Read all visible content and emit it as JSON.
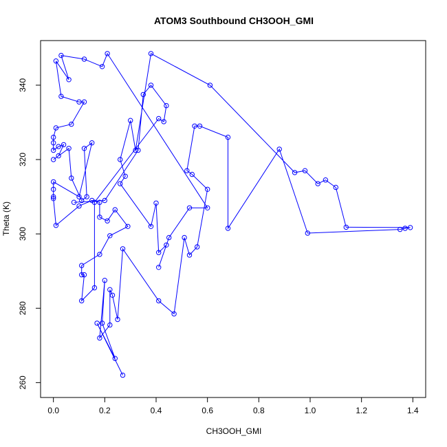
{
  "chart_data": {
    "type": "line",
    "title": "ATOM3 Southbound CH3OOH_GMI",
    "xlabel": "CH3OOH_GMI",
    "ylabel": "Theta (K)",
    "xlim": [
      -0.05,
      1.45
    ],
    "ylim": [
      256,
      352
    ],
    "xticks": [
      0.0,
      0.2,
      0.4,
      0.6,
      0.8,
      1.0,
      1.2,
      1.4
    ],
    "xtick_labels": [
      "0.0",
      "0.2",
      "0.4",
      "0.6",
      "0.8",
      "1.0",
      "1.2",
      "1.4"
    ],
    "yticks": [
      260,
      280,
      300,
      320,
      340
    ],
    "ytick_labels": [
      "260",
      "280",
      "300",
      "320",
      "340"
    ],
    "grid": false,
    "legend": "none",
    "series": [
      {
        "color": "#0000ff",
        "marker": "open-circle",
        "points": [
          [
            0.27,
            262
          ],
          [
            0.17,
            276
          ],
          [
            0.24,
            266.5
          ],
          [
            0.19,
            276
          ],
          [
            0.2,
            287.5
          ],
          [
            0.18,
            272
          ],
          [
            0.22,
            275.5
          ],
          [
            0.22,
            285
          ],
          [
            0.23,
            283.5
          ],
          [
            0.25,
            277
          ],
          [
            0.27,
            296
          ],
          [
            0.41,
            282
          ],
          [
            0.47,
            278.5
          ],
          [
            0.51,
            299
          ],
          [
            0.53,
            294.3
          ],
          [
            0.56,
            296.5
          ],
          [
            0.6,
            312
          ],
          [
            0.54,
            316
          ],
          [
            0.52,
            317
          ],
          [
            0.55,
            329
          ],
          [
            0.57,
            329
          ],
          [
            0.68,
            326
          ],
          [
            0.68,
            301.5
          ],
          [
            0.88,
            322.8
          ],
          [
            0.99,
            300.2
          ],
          [
            1.35,
            301.2
          ],
          [
            1.37,
            301.5
          ],
          [
            1.39,
            301.7
          ],
          [
            1.14,
            301.8
          ],
          [
            1.1,
            312.5
          ],
          [
            1.06,
            314.5
          ],
          [
            1.03,
            313.5
          ],
          [
            0.98,
            317
          ],
          [
            0.94,
            316.5
          ],
          [
            0.61,
            340
          ],
          [
            0.38,
            348.5
          ],
          [
            0.32,
            322.5
          ],
          [
            0.3,
            330.5
          ],
          [
            0.26,
            320
          ],
          [
            0.28,
            315.5
          ],
          [
            0.26,
            313.5
          ],
          [
            0.38,
            302
          ],
          [
            0.4,
            308.3
          ],
          [
            0.41,
            295
          ],
          [
            0.44,
            297
          ],
          [
            0.41,
            291
          ],
          [
            0.45,
            299
          ],
          [
            0.53,
            307
          ],
          [
            0.6,
            307
          ],
          [
            0.21,
            348.5
          ],
          [
            0.19,
            345
          ],
          [
            0.12,
            347
          ],
          [
            0.03,
            348
          ],
          [
            0.06,
            341.5
          ],
          [
            0.01,
            346.5
          ],
          [
            0.03,
            337
          ],
          [
            0.1,
            335.5
          ],
          [
            0.12,
            335.5
          ],
          [
            0.07,
            329.5
          ],
          [
            0.01,
            328.5
          ],
          [
            0.0,
            326
          ],
          [
            0.0,
            324.5
          ],
          [
            0.0,
            322.5
          ],
          [
            0.02,
            323.5
          ],
          [
            0.04,
            324
          ],
          [
            0.02,
            321
          ],
          [
            0.0,
            320
          ],
          [
            0.06,
            323
          ],
          [
            0.07,
            315
          ],
          [
            0.11,
            309
          ],
          [
            0.13,
            310
          ],
          [
            0.12,
            323
          ],
          [
            0.15,
            324.5
          ],
          [
            0.1,
            310
          ],
          [
            0.0,
            314
          ],
          [
            0.0,
            312
          ],
          [
            0.0,
            310
          ],
          [
            0.0,
            309.5
          ],
          [
            0.01,
            302.3
          ],
          [
            0.1,
            307.5
          ],
          [
            0.15,
            309
          ],
          [
            0.18,
            308.5
          ],
          [
            0.18,
            304.5
          ],
          [
            0.21,
            303.5
          ],
          [
            0.24,
            306.5
          ],
          [
            0.29,
            302
          ],
          [
            0.22,
            299.5
          ],
          [
            0.18,
            294.5
          ],
          [
            0.11,
            291.5
          ],
          [
            0.11,
            289
          ],
          [
            0.12,
            289
          ],
          [
            0.11,
            282
          ],
          [
            0.16,
            285.5
          ],
          [
            0.16,
            308.5
          ],
          [
            0.41,
            331
          ],
          [
            0.43,
            330.2
          ],
          [
            0.44,
            334.5
          ],
          [
            0.38,
            340
          ],
          [
            0.35,
            337.5
          ],
          [
            0.33,
            322.5
          ],
          [
            0.2,
            309
          ],
          [
            0.08,
            308.5
          ]
        ]
      }
    ]
  }
}
